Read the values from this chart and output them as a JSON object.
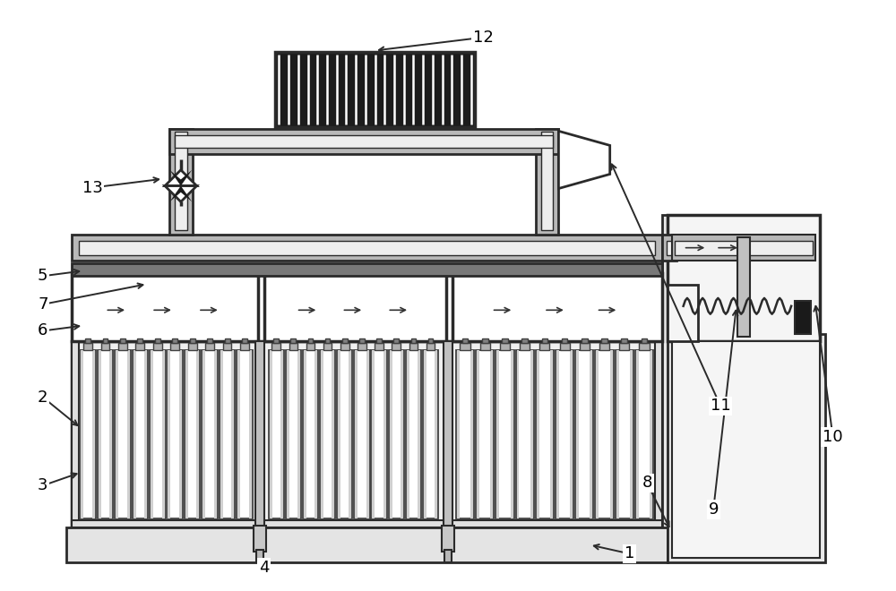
{
  "bg_color": "#ffffff",
  "lc": "#2a2a2a",
  "gray_pipe": "#a0a0a0",
  "dark_gray": "#606060",
  "light_gray": "#d8d8d8",
  "mid_gray": "#909090",
  "condenser_dark": "#1a1a1a",
  "white": "#ffffff",
  "label_fs": 13
}
